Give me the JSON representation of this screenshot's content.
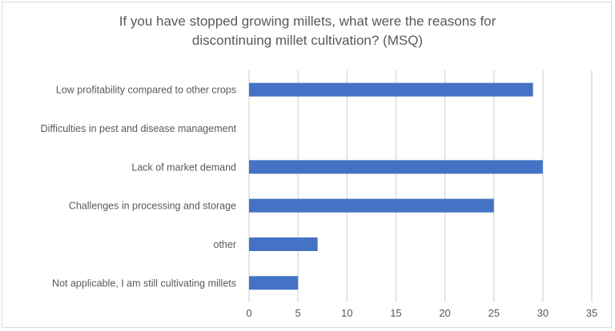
{
  "chart_data": {
    "type": "bar",
    "orientation": "horizontal",
    "title_lines": [
      "If you have stopped growing millets, what were the reasons for",
      "discontinuing millet cultivation? (MSQ)"
    ],
    "title": "If you have stopped growing millets, what were the reasons for discontinuing millet cultivation? (MSQ)",
    "categories": [
      "Low profitability compared to other crops",
      "Difficulties in pest and disease management",
      "Lack of market demand",
      "Challenges in processing and storage",
      "other",
      "Not applicable, I am still cultivating millets"
    ],
    "values": [
      29,
      0,
      30,
      25,
      7,
      5
    ],
    "xlim": [
      0,
      35
    ],
    "xticks": [
      0,
      5,
      10,
      15,
      20,
      25,
      30,
      35
    ],
    "xlabel": "",
    "ylabel": "",
    "grid": true,
    "legend": "none",
    "bar_color": "#4472c4",
    "grid_color": "#d9d9d9"
  }
}
